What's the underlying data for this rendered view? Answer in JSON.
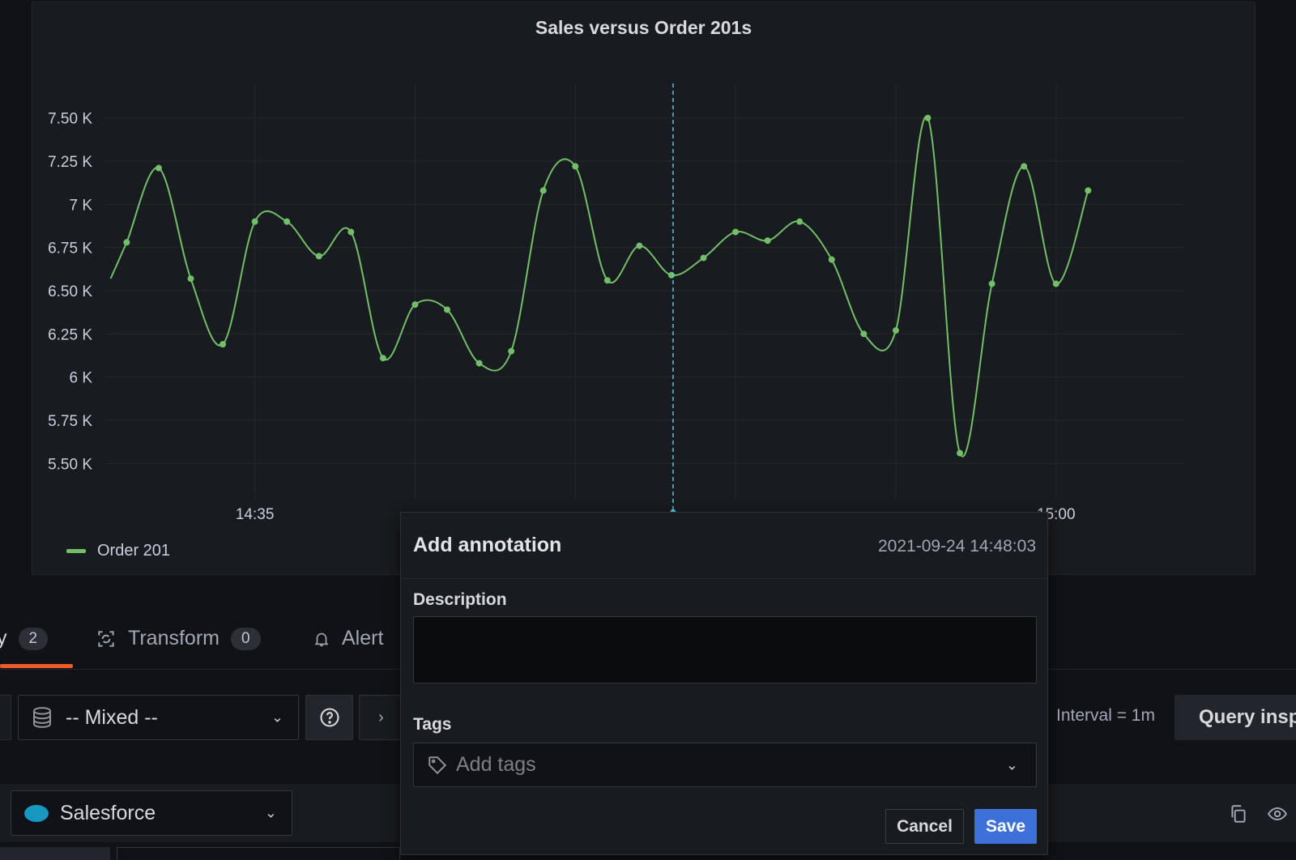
{
  "panel": {
    "title": "Sales versus Order 201s",
    "legend": [
      {
        "label": "Order 201",
        "color": "#73bf69"
      }
    ]
  },
  "chart_data": {
    "type": "line",
    "title": "Sales versus Order 201s",
    "xlabel": "",
    "ylabel": "",
    "x_tick_labels": [
      "14:35",
      "15:00"
    ],
    "y_tick_labels": [
      "5.50 K",
      "5.75 K",
      "6 K",
      "6.25 K",
      "6.50 K",
      "6.75 K",
      "7 K",
      "7.25 K",
      "7.50 K"
    ],
    "y_ticks": [
      5500,
      5750,
      6000,
      6250,
      6500,
      6750,
      7000,
      7250,
      7500
    ],
    "ylim": [
      5300,
      7700
    ],
    "xlim": [
      "14:30:20",
      "15:04:00"
    ],
    "grid": true,
    "legend_position": "bottom-left",
    "series": [
      {
        "name": "Order 201",
        "color": "#73bf69",
        "x": [
          "14:30:30",
          "14:31:00",
          "14:32:00",
          "14:33:00",
          "14:34:00",
          "14:35:00",
          "14:36:00",
          "14:37:00",
          "14:38:00",
          "14:39:00",
          "14:40:00",
          "14:41:00",
          "14:42:00",
          "14:43:00",
          "14:44:00",
          "14:45:00",
          "14:46:00",
          "14:47:00",
          "14:48:00",
          "14:49:00",
          "14:50:00",
          "14:51:00",
          "14:52:00",
          "14:53:00",
          "14:54:00",
          "14:55:00",
          "14:56:00",
          "14:57:00",
          "14:58:00",
          "14:59:00",
          "15:00:00",
          "15:01:00"
        ],
        "values": [
          6570,
          6780,
          7210,
          6570,
          6190,
          6900,
          6900,
          6700,
          6840,
          6110,
          6420,
          6390,
          6080,
          6150,
          7080,
          7220,
          6560,
          6760,
          6590,
          6690,
          6840,
          6790,
          6900,
          6680,
          6250,
          6270,
          7500,
          5560,
          6540,
          7220,
          6540,
          7080
        ]
      }
    ],
    "annotation_marker": "14:48:03"
  },
  "tabs": {
    "query_count": "2",
    "transform_label": "Transform",
    "transform_count": "0",
    "alert_label": "Alert"
  },
  "query_bar": {
    "datasource": "-- Mixed --",
    "interval": "Interval = 1m",
    "inspector": "Query inspector"
  },
  "query_row": {
    "datasource": "Salesforce"
  },
  "annotation": {
    "title": "Add annotation",
    "timestamp": "2021-09-24 14:48:03",
    "description_label": "Description",
    "description_value": "",
    "tags_label": "Tags",
    "tags_placeholder": "Add tags",
    "cancel_label": "Cancel",
    "save_label": "Save"
  },
  "colors": {
    "series": "#73bf69",
    "annotation_marker": "#56c8e6",
    "primary_button": "#3d71d9",
    "active_tab": "#f05a28"
  }
}
